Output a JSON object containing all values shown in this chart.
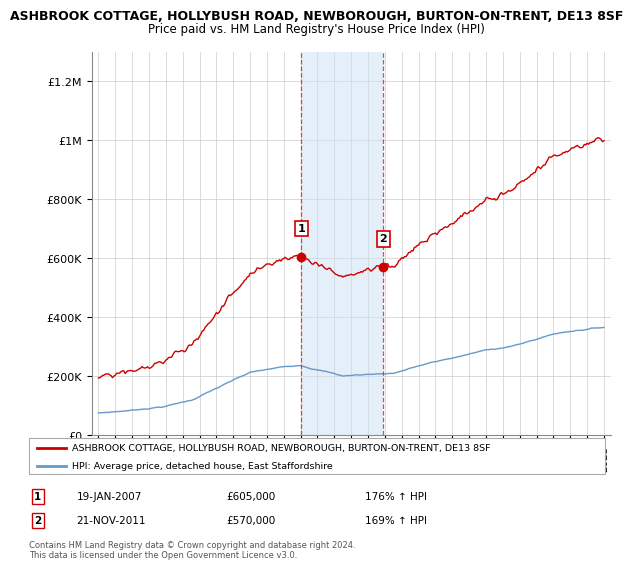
{
  "title": "ASHBROOK COTTAGE, HOLLYBUSH ROAD, NEWBOROUGH, BURTON-ON-TRENT, DE13 8SF",
  "subtitle": "Price paid vs. HM Land Registry's House Price Index (HPI)",
  "red_line_label": "ASHBROOK COTTAGE, HOLLYBUSH ROAD, NEWBOROUGH, BURTON-ON-TRENT, DE13 8SF",
  "blue_line_label": "HPI: Average price, detached house, East Staffordshire",
  "sale1_date": "19-JAN-2007",
  "sale1_price": 605000,
  "sale1_hpi_pct": "176%",
  "sale2_date": "21-NOV-2011",
  "sale2_price": 570000,
  "sale2_hpi_pct": "169%",
  "footer": "Contains HM Land Registry data © Crown copyright and database right 2024.\nThis data is licensed under the Open Government Licence v3.0.",
  "ylim": [
    0,
    1300000
  ],
  "yticks": [
    0,
    200000,
    400000,
    600000,
    800000,
    1000000,
    1200000
  ],
  "ytick_labels": [
    "£0",
    "£200K",
    "£400K",
    "£600K",
    "£800K",
    "£1M",
    "£1.2M"
  ],
  "red_color": "#cc0000",
  "blue_color": "#6699cc",
  "shade_color": "#cce0f5",
  "sale1_x": 2007.05,
  "sale2_x": 2011.9,
  "shade_alpha": 0.5,
  "xmin": 1995,
  "xmax": 2025
}
